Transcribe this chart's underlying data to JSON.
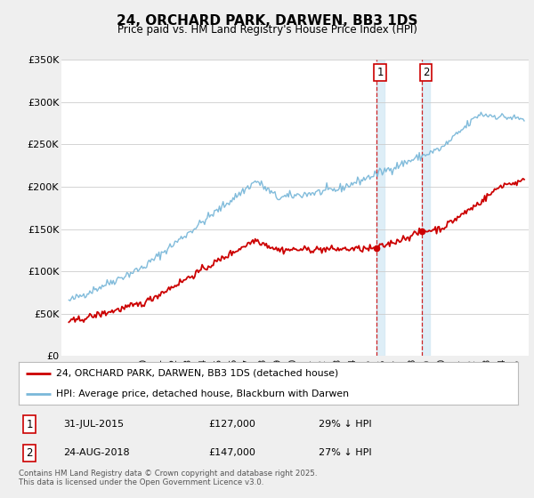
{
  "title": "24, ORCHARD PARK, DARWEN, BB3 1DS",
  "subtitle": "Price paid vs. HM Land Registry's House Price Index (HPI)",
  "ylim": [
    0,
    350000
  ],
  "yticks": [
    0,
    50000,
    100000,
    150000,
    200000,
    250000,
    300000,
    350000
  ],
  "ytick_labels": [
    "£0",
    "£50K",
    "£100K",
    "£150K",
    "£200K",
    "£250K",
    "£300K",
    "£350K"
  ],
  "hpi_color": "#7ab8d9",
  "price_color": "#cc0000",
  "shade_color": "#d6eaf5",
  "sale1_x": 2015.58,
  "sale1_y": 127000,
  "sale2_x": 2018.65,
  "sale2_y": 147000,
  "sale1": {
    "date": "31-JUL-2015",
    "price": "£127,000",
    "pct": "29% ↓ HPI",
    "label": "1"
  },
  "sale2": {
    "date": "24-AUG-2018",
    "price": "£147,000",
    "pct": "27% ↓ HPI",
    "label": "2"
  },
  "legend_line1": "24, ORCHARD PARK, DARWEN, BB3 1DS (detached house)",
  "legend_line2": "HPI: Average price, detached house, Blackburn with Darwen",
  "footer": "Contains HM Land Registry data © Crown copyright and database right 2025.\nThis data is licensed under the Open Government Licence v3.0.",
  "bg_color": "#efefef",
  "plot_bg": "#ffffff",
  "xmin": 1994.5,
  "xmax": 2025.8
}
